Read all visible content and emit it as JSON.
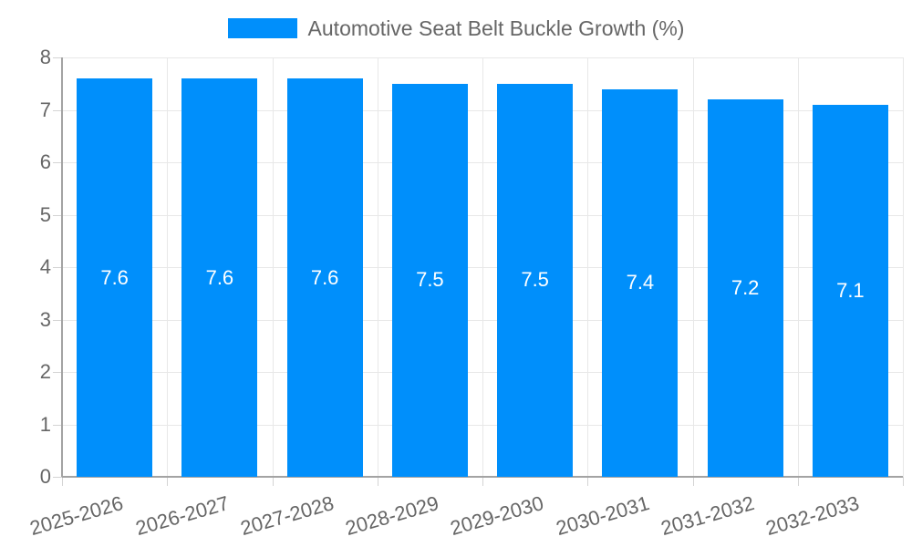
{
  "chart_data": {
    "type": "bar",
    "title": "Automotive Seat Belt Buckle Growth (%)",
    "legend": {
      "label": "Automotive Seat Belt Buckle Growth (%)",
      "position": "top"
    },
    "categories": [
      "2025-2026",
      "2026-2027",
      "2027-2028",
      "2028-2029",
      "2029-2030",
      "2030-2031",
      "2031-2032",
      "2032-2033"
    ],
    "values": [
      7.6,
      7.6,
      7.6,
      7.5,
      7.5,
      7.4,
      7.2,
      7.1
    ],
    "value_labels": [
      "7.6",
      "7.6",
      "7.6",
      "7.5",
      "7.5",
      "7.4",
      "7.2",
      "7.1"
    ],
    "xlabel": "",
    "ylabel": "",
    "ylim": [
      0,
      8
    ],
    "y_ticks": [
      0,
      1,
      2,
      3,
      4,
      5,
      6,
      7,
      8
    ],
    "grid": "on",
    "colors": {
      "bar": "#008FFB",
      "value_label_text": "#ffffff",
      "axis_text": "#666666",
      "gridline": "#e8e8e8",
      "axis_line": "#a3a3a3",
      "tick_mark": "#d4d4d4",
      "background": "#ffffff"
    }
  }
}
